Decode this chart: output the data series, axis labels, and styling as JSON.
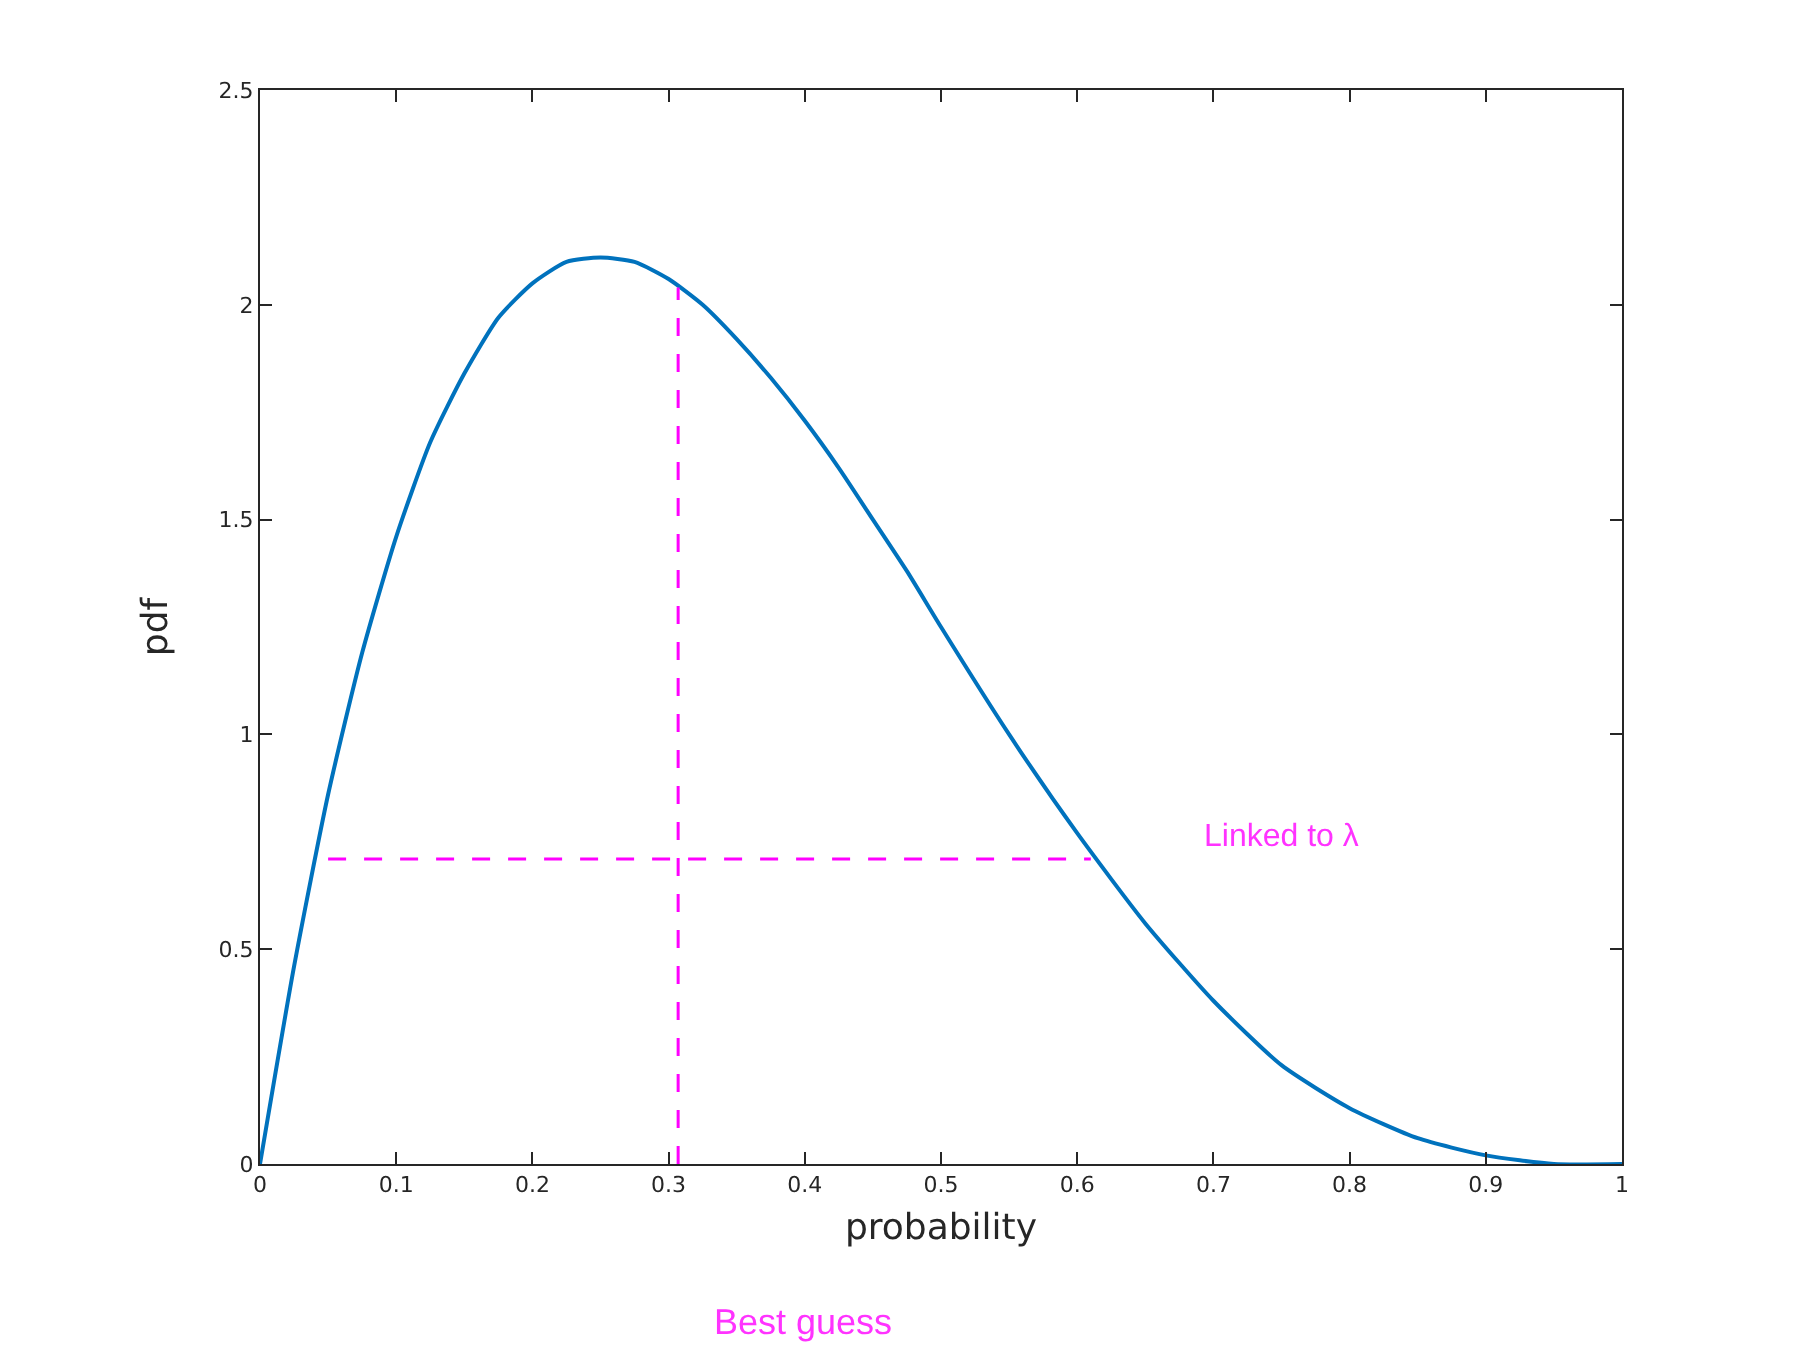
{
  "chart_data": {
    "type": "line",
    "xlabel": "probability",
    "ylabel": "pdf",
    "xlim": [
      0,
      1
    ],
    "xticks": [
      0,
      0.1,
      0.2,
      0.3,
      0.4,
      0.5,
      0.6,
      0.7,
      0.8,
      0.9,
      1
    ],
    "ylim": [
      0,
      2.5
    ],
    "yticks": [
      0,
      0.5,
      1,
      1.5,
      2,
      2.5
    ],
    "marker": "none",
    "series": [
      {
        "color": "#0072bd",
        "line_style": "solid",
        "x": [
          0,
          0.025,
          0.05,
          0.075,
          0.1,
          0.125,
          0.15,
          0.175,
          0.2,
          0.225,
          0.25,
          0.275,
          0.3,
          0.325,
          0.35,
          0.375,
          0.4,
          0.425,
          0.45,
          0.475,
          0.5,
          0.55,
          0.6,
          0.65,
          0.7,
          0.75,
          0.8,
          0.85,
          0.9,
          0.95,
          1
        ],
        "values": [
          0,
          0.46,
          0.86,
          1.19,
          1.46,
          1.68,
          1.84,
          1.97,
          2.05,
          2.1,
          2.11,
          2.1,
          2.06,
          2.0,
          1.92,
          1.83,
          1.73,
          1.62,
          1.5,
          1.38,
          1.25,
          1.0,
          0.77,
          0.56,
          0.38,
          0.23,
          0.13,
          0.06,
          0.02,
          0.0,
          0
        ]
      },
      {
        "color": "#ff00ff",
        "line_style": "dashed",
        "x": [
          0.307,
          0.307
        ],
        "values": [
          0,
          2.04
        ]
      },
      {
        "color": "#ff00ff",
        "line_style": "dashed",
        "x": [
          0.05,
          0.61
        ],
        "values": [
          0.71,
          0.71
        ]
      }
    ],
    "annotations": [
      "Linked to λ",
      "Best guess"
    ]
  }
}
